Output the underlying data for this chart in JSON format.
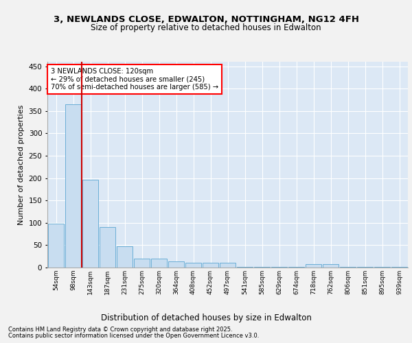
{
  "title_line1": "3, NEWLANDS CLOSE, EDWALTON, NOTTINGHAM, NG12 4FH",
  "title_line2": "Size of property relative to detached houses in Edwalton",
  "xlabel": "Distribution of detached houses by size in Edwalton",
  "ylabel": "Number of detached properties",
  "footnote1": "Contains HM Land Registry data © Crown copyright and database right 2025.",
  "footnote2": "Contains public sector information licensed under the Open Government Licence v3.0.",
  "annotation_line1": "3 NEWLANDS CLOSE: 120sqm",
  "annotation_line2": "← 29% of detached houses are smaller (245)",
  "annotation_line3": "70% of semi-detached houses are larger (585) →",
  "red_line_x": 1.5,
  "bar_color": "#c8ddf0",
  "bar_edge_color": "#6aaed6",
  "red_line_color": "#cc0000",
  "fig_bg_color": "#f2f2f2",
  "plot_bg_color": "#dce8f5",
  "grid_color": "#ffffff",
  "categories": [
    "54sqm",
    "98sqm",
    "143sqm",
    "187sqm",
    "231sqm",
    "275sqm",
    "320sqm",
    "364sqm",
    "408sqm",
    "452sqm",
    "497sqm",
    "541sqm",
    "585sqm",
    "629sqm",
    "674sqm",
    "718sqm",
    "762sqm",
    "806sqm",
    "851sqm",
    "895sqm",
    "939sqm"
  ],
  "values": [
    98,
    365,
    197,
    90,
    47,
    20,
    20,
    14,
    10,
    10,
    10,
    2,
    2,
    2,
    2,
    7,
    7,
    2,
    2,
    2,
    2
  ],
  "ylim": [
    0,
    460
  ],
  "yticks": [
    0,
    50,
    100,
    150,
    200,
    250,
    300,
    350,
    400,
    450
  ]
}
